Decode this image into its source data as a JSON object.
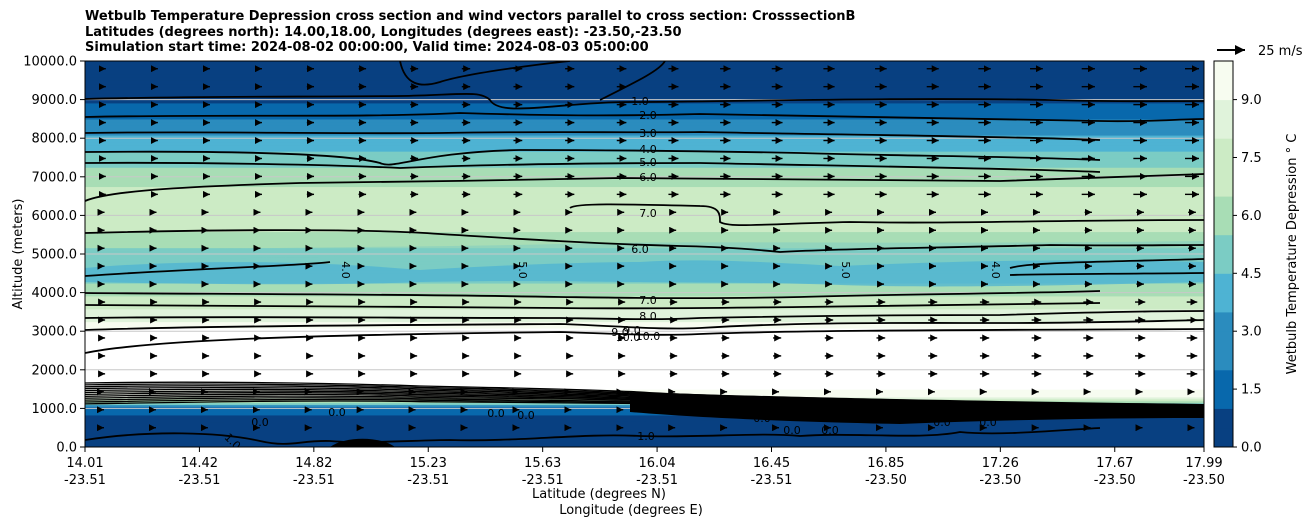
{
  "chart_data": {
    "type": "contour",
    "title_lines": [
      "Wetbulb Temperature Depression cross section and wind vectors parallel to cross section: CrosssectionB",
      "Latitudes (degrees north): 14.00,18.00, Longitudes (degrees east): -23.50,-23.50",
      "Simulation start time: 2024-08-02 00:00:00, Valid time: 2024-08-03 05:00:00"
    ],
    "ylabel": "Altitude (meters)",
    "xlabel_lat": "Latitude (degrees N)",
    "xlabel_lon": "Longitude (degrees E)",
    "ylim": [
      0,
      10000
    ],
    "y_ticks": [
      "0.0",
      "1000.0",
      "2000.0",
      "3000.0",
      "4000.0",
      "5000.0",
      "6000.0",
      "7000.0",
      "8000.0",
      "9000.0",
      "10000.0"
    ],
    "y_tick_values": [
      0,
      1000,
      2000,
      3000,
      4000,
      5000,
      6000,
      7000,
      8000,
      9000,
      10000
    ],
    "x_ticks": [
      {
        "lat": "14.01",
        "lon": "-23.51"
      },
      {
        "lat": "14.42",
        "lon": "-23.51"
      },
      {
        "lat": "14.82",
        "lon": "-23.51"
      },
      {
        "lat": "15.23",
        "lon": "-23.51"
      },
      {
        "lat": "15.63",
        "lon": "-23.51"
      },
      {
        "lat": "16.04",
        "lon": "-23.51"
      },
      {
        "lat": "16.45",
        "lon": "-23.51"
      },
      {
        "lat": "16.85",
        "lon": "-23.50"
      },
      {
        "lat": "17.26",
        "lon": "-23.50"
      },
      {
        "lat": "17.67",
        "lon": "-23.50"
      },
      {
        "lat": "17.99",
        "lon": "-23.50"
      }
    ],
    "colorbar": {
      "label": "Wetbulb Temperature Depression $^\\circ$C",
      "label_display": "Wetbulb Temperature Depression ° C",
      "range": [
        0,
        10
      ],
      "tick_labels": [
        "0.0",
        "1.5",
        "3.0",
        "4.5",
        "6.0",
        "7.5",
        "9.0"
      ],
      "tick_values": [
        0,
        1.5,
        3,
        4.5,
        6,
        7.5,
        9
      ],
      "colors": [
        "#084081",
        "#0868ac",
        "#2b8cbe",
        "#4eb3d3",
        "#7bccc4",
        "#a8ddb5",
        "#ccebc5",
        "#e0f3db",
        "#f7fcf0"
      ]
    },
    "wind_key": {
      "label": "25 m/s",
      "speed": 25
    },
    "contour_labels": [
      "1.0",
      "2.0",
      "3.0",
      "4.0",
      "5.0",
      "6.0",
      "7.0",
      "6.0",
      "7.0",
      "8.0",
      "9.0",
      "10.0",
      "4.0",
      "5.0",
      "5.0",
      "4.0",
      "9.0",
      "10.0",
      "0.0",
      "0.0",
      "0.0",
      "0.0",
      "0.0",
      "0.0",
      "0.0",
      "0.0",
      "0.0",
      "1.0",
      "1.0"
    ],
    "profile_altitudes": [
      0,
      500,
      1000,
      1300,
      1600,
      2000,
      2700,
      3000,
      3500,
      4000,
      4500,
      5000,
      5500,
      6000,
      6500,
      7000,
      7500,
      8000,
      8500,
      9000,
      9500,
      10000
    ],
    "profile_depression": [
      0.3,
      0.8,
      1.3,
      9.0,
      10.0,
      10.0,
      10.0,
      9.8,
      8.0,
      6.5,
      4.5,
      5.2,
      6.6,
      7.3,
      7.2,
      6.2,
      5.0,
      3.6,
      2.2,
      1.0,
      0.6,
      0.5
    ]
  }
}
